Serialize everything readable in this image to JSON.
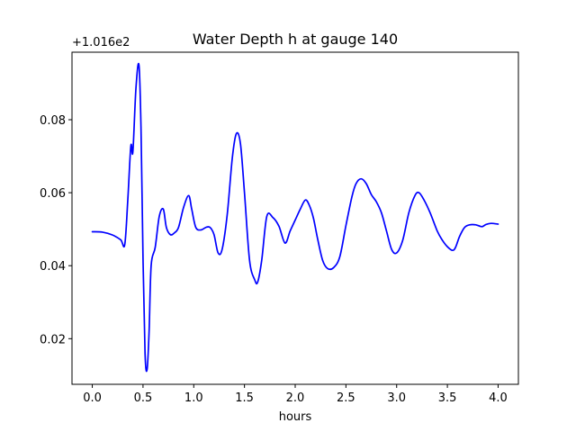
{
  "chart_data": {
    "type": "line",
    "title": "Water Depth h at gauge 140",
    "xlabel": "hours",
    "ylabel": "",
    "y_offset_label": "+1.016e2",
    "y_offset": 101.6,
    "xlim": [
      -0.2,
      4.2
    ],
    "ylim": [
      0.0075,
      0.0985
    ],
    "xticks": [
      0.0,
      0.5,
      1.0,
      1.5,
      2.0,
      2.5,
      3.0,
      3.5,
      4.0
    ],
    "xtick_labels": [
      "0.0",
      "0.5",
      "1.0",
      "1.5",
      "2.0",
      "2.5",
      "3.0",
      "3.5",
      "4.0"
    ],
    "yticks": [
      0.02,
      0.04,
      0.06,
      0.08
    ],
    "ytick_labels": [
      "0.02",
      "0.04",
      "0.06",
      "0.08"
    ],
    "grid": false,
    "series": [
      {
        "color": "#0000ff",
        "x": [
          0.0,
          0.1,
          0.2,
          0.28,
          0.32,
          0.35,
          0.38,
          0.4,
          0.43,
          0.46,
          0.48,
          0.5,
          0.52,
          0.54,
          0.56,
          0.58,
          0.62,
          0.66,
          0.7,
          0.73,
          0.77,
          0.81,
          0.85,
          0.9,
          0.95,
          0.98,
          1.02,
          1.07,
          1.12,
          1.16,
          1.2,
          1.24,
          1.28,
          1.33,
          1.38,
          1.42,
          1.46,
          1.5,
          1.55,
          1.6,
          1.63,
          1.67,
          1.72,
          1.78,
          1.84,
          1.9,
          1.95,
          2.0,
          2.05,
          2.1,
          2.14,
          2.18,
          2.22,
          2.27,
          2.32,
          2.38,
          2.44,
          2.5,
          2.56,
          2.6,
          2.65,
          2.7,
          2.75,
          2.8,
          2.85,
          2.9,
          2.95,
          3.0,
          3.06,
          3.12,
          3.18,
          3.22,
          3.27,
          3.33,
          3.4,
          3.45,
          3.5,
          3.55,
          3.58,
          3.62,
          3.67,
          3.72,
          3.78,
          3.84,
          3.88,
          3.93,
          4.0
        ],
        "y": [
          0.0493,
          0.0492,
          0.0484,
          0.0471,
          0.0458,
          0.058,
          0.0728,
          0.0712,
          0.0885,
          0.095,
          0.078,
          0.042,
          0.016,
          0.0115,
          0.022,
          0.04,
          0.045,
          0.0535,
          0.0555,
          0.0505,
          0.0485,
          0.049,
          0.0505,
          0.056,
          0.0592,
          0.0555,
          0.0505,
          0.0498,
          0.0505,
          0.0505,
          0.0485,
          0.0435,
          0.0445,
          0.054,
          0.0695,
          0.0762,
          0.0735,
          0.06,
          0.0415,
          0.0362,
          0.0355,
          0.0415,
          0.0535,
          0.0532,
          0.0508,
          0.0462,
          0.0495,
          0.0525,
          0.0555,
          0.058,
          0.0565,
          0.053,
          0.0475,
          0.0415,
          0.0392,
          0.0395,
          0.0425,
          0.051,
          0.059,
          0.0625,
          0.0638,
          0.0625,
          0.0595,
          0.0575,
          0.0545,
          0.0495,
          0.0445,
          0.0435,
          0.047,
          0.0545,
          0.0592,
          0.06,
          0.058,
          0.0545,
          0.0495,
          0.047,
          0.0452,
          0.0442,
          0.045,
          0.048,
          0.0505,
          0.0512,
          0.0512,
          0.0507,
          0.0513,
          0.0516,
          0.0514
        ]
      }
    ]
  }
}
